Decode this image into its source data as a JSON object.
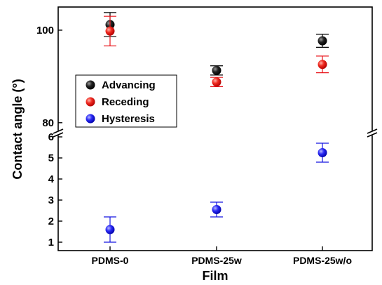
{
  "chart_data": {
    "type": "scatter",
    "xlabel": "Film",
    "ylabel": "Contact angle (°)",
    "categories": [
      "PDMS-0",
      "PDMS-25w",
      "PDMS-25w/o"
    ],
    "y_axis_break": true,
    "upper_panel": {
      "ylim": [
        78,
        105
      ],
      "ticks": [
        "80",
        "100"
      ],
      "tick_values": [
        80,
        100
      ]
    },
    "lower_panel": {
      "ylim": [
        0.6,
        6.1
      ],
      "ticks": [
        "1",
        "2",
        "3",
        "4",
        "5",
        "6"
      ],
      "tick_values": [
        1,
        2,
        3,
        4,
        5,
        6
      ]
    },
    "series": [
      {
        "name": "Advancing",
        "color": "#000000",
        "panel": "upper",
        "values": [
          101.2,
          91.3,
          97.7
        ],
        "errors": [
          2.6,
          1.0,
          1.4
        ]
      },
      {
        "name": "Receding",
        "color": "#e8141a",
        "panel": "upper",
        "values": [
          99.8,
          88.8,
          92.6
        ],
        "errors": [
          3.2,
          1.0,
          1.8
        ]
      },
      {
        "name": "Hysteresis",
        "color": "#1515e0",
        "panel": "lower",
        "values": [
          1.6,
          2.55,
          5.25
        ],
        "errors": [
          0.6,
          0.35,
          0.45
        ]
      }
    ],
    "legend_position": "center-left",
    "grid": false
  }
}
